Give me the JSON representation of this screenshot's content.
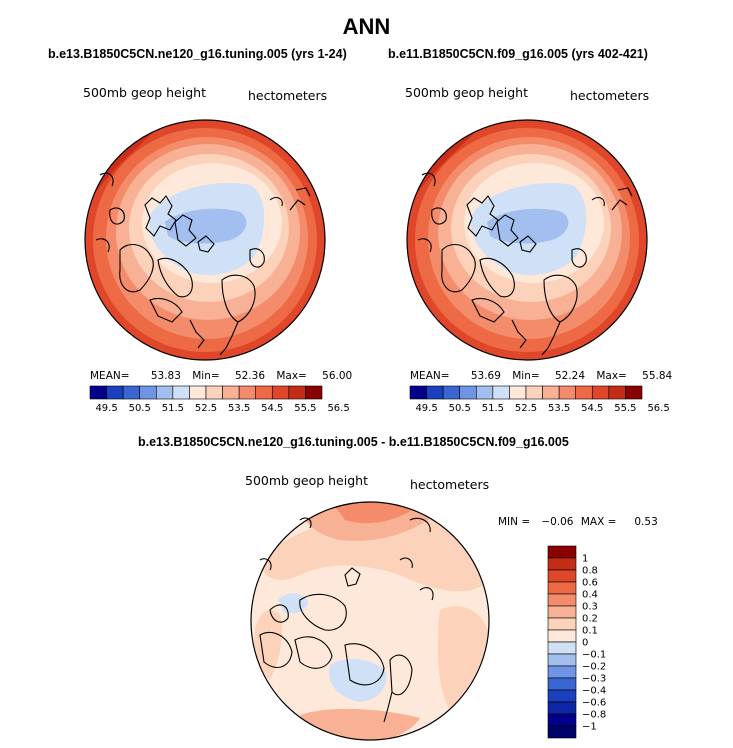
{
  "page": {
    "title": "ANN",
    "variable_label": "500mb geop height",
    "units_label": "hectometers"
  },
  "panels": [
    {
      "case_title": "b.e13.B1850C5CN.ne120_g16.tuning.005 (yrs 1-24)",
      "stats": {
        "mean_label": "MEAN=",
        "mean": "53.83",
        "min_label": "Min=",
        "min": "52.36",
        "max_label": "Max=",
        "max": "56.00"
      }
    },
    {
      "case_title": "b.e11.B1850C5CN.f09_g16.005 (yrs 402-421)",
      "stats": {
        "mean_label": "MEAN=",
        "mean": "53.69",
        "min_label": "Min=",
        "min": "52.24",
        "max_label": "Max=",
        "max": "55.84"
      }
    }
  ],
  "diff_panel": {
    "case_title": "b.e13.B1850C5CN.ne120_g16.tuning.005 - b.e11.B1850C5CN.f09_g16.005",
    "min_label": "MIN =",
    "min": "−0.06",
    "max_label": "MAX =",
    "max": "0.53"
  },
  "colorbar_horizontal": {
    "labels": [
      "49.5",
      "50.5",
      "51.5",
      "52.5",
      "53.5",
      "54.5",
      "55.5",
      "56.5"
    ],
    "colors": [
      "#00008b",
      "#1a3fbf",
      "#3a66d4",
      "#6f95e6",
      "#a3bff0",
      "#cfe0f7",
      "#fde8da",
      "#fcd2bb",
      "#f8b195",
      "#f48c6c",
      "#ee6a45",
      "#e0462a",
      "#c52c16",
      "#8b0000"
    ]
  },
  "colorbar_vertical": {
    "labels": [
      "1",
      "0.8",
      "0.6",
      "0.4",
      "0.3",
      "0.2",
      "0.1",
      "0",
      "−0.1",
      "−0.2",
      "−0.3",
      "−0.4",
      "−0.6",
      "−0.8",
      "−1"
    ],
    "colors": [
      "#8b0000",
      "#c52c16",
      "#e0462a",
      "#ee6a45",
      "#f48c6c",
      "#f8b195",
      "#fcd2bb",
      "#fde8da",
      "#cfe0f7",
      "#a3bff0",
      "#6f95e6",
      "#3a66d4",
      "#1a3fbf",
      "#0d25a8",
      "#00008b",
      "#00006a"
    ]
  },
  "chart_data": [
    {
      "type": "heatmap",
      "projection": "polar stereographic (north pole)",
      "variable": "500mb geop height",
      "units": "hectometers",
      "contour_levels": [
        49.5,
        50.0,
        50.5,
        51.0,
        51.5,
        52.0,
        52.5,
        53.0,
        53.5,
        54.0,
        54.5,
        55.0,
        55.5,
        56.0,
        56.5
      ],
      "mean": 53.83,
      "min": 52.36,
      "max": 56.0,
      "field_by_colat_deg": [
        [
          0,
          52.9
        ],
        [
          10,
          52.8
        ],
        [
          20,
          53.3
        ],
        [
          30,
          53.8
        ],
        [
          40,
          54.6
        ],
        [
          50,
          55.3
        ],
        [
          55,
          55.8
        ]
      ]
    },
    {
      "type": "heatmap",
      "projection": "polar stereographic (north pole)",
      "variable": "500mb geop height",
      "units": "hectometers",
      "contour_levels": [
        49.5,
        50.0,
        50.5,
        51.0,
        51.5,
        52.0,
        52.5,
        53.0,
        53.5,
        54.0,
        54.5,
        55.0,
        55.5,
        56.0,
        56.5
      ],
      "mean": 53.69,
      "min": 52.24,
      "max": 55.84,
      "field_by_colat_deg": [
        [
          0,
          52.8
        ],
        [
          10,
          52.7
        ],
        [
          20,
          53.2
        ],
        [
          30,
          53.7
        ],
        [
          40,
          54.5
        ],
        [
          50,
          55.2
        ],
        [
          55,
          55.7
        ]
      ]
    },
    {
      "type": "heatmap",
      "projection": "polar stereographic (north pole)",
      "variable": "500mb geop height difference",
      "units": "hectometers",
      "contour_levels": [
        -1,
        -0.8,
        -0.6,
        -0.4,
        -0.3,
        -0.2,
        -0.1,
        0,
        0.1,
        0.2,
        0.3,
        0.4,
        0.6,
        0.8,
        1
      ],
      "min": -0.06,
      "max": 0.53
    }
  ]
}
